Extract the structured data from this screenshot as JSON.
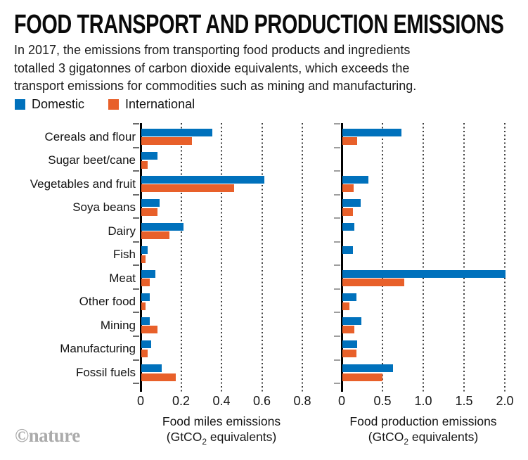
{
  "title": "FOOD TRANSPORT AND PRODUCTION EMISSIONS",
  "subtitle_lines": [
    "In 2017, the emissions from transporting food products and ingredients",
    "totalled 3 gigatonnes of carbon dioxide equivalents, which exceeds the",
    "transport emissions for commodities such as mining and manufacturing."
  ],
  "legend": {
    "items": [
      {
        "label": "Domestic",
        "color": "#0071BC"
      },
      {
        "label": "International",
        "color": "#E8602A"
      }
    ]
  },
  "watermark": "©nature",
  "chart_data": [
    {
      "type": "bar",
      "orientation": "horizontal",
      "title": "Food miles emissions",
      "xlabel": "Food miles emissions",
      "xunit": {
        "pre": "(GtCO",
        "sub": "2",
        "post": " equivalents)"
      },
      "xlim": [
        0,
        0.8
      ],
      "tick_values": [
        0,
        0.2,
        0.4,
        0.6,
        0.8
      ],
      "tick_labels": [
        "0",
        "0.2",
        "0.4",
        "0.6",
        "0.8"
      ],
      "grid": "dotted-vertical",
      "categories": [
        "Cereals and flour",
        "Sugar beet/cane",
        "Vegetables and fruit",
        "Soya beans",
        "Dairy",
        "Fish",
        "Meat",
        "Other food",
        "Mining",
        "Manufacturing",
        "Fossil fuels"
      ],
      "series": [
        {
          "name": "Domestic",
          "color": "#0071BC",
          "values": [
            0.35,
            0.08,
            0.61,
            0.09,
            0.21,
            0.03,
            0.07,
            0.04,
            0.04,
            0.05,
            0.1
          ]
        },
        {
          "name": "International",
          "color": "#E8602A",
          "values": [
            0.25,
            0.03,
            0.46,
            0.08,
            0.14,
            0.02,
            0.04,
            0.02,
            0.08,
            0.03,
            0.17
          ]
        }
      ]
    },
    {
      "type": "bar",
      "orientation": "horizontal",
      "title": "Food production emissions",
      "xlabel": "Food production emissions",
      "xunit": {
        "pre": "(GtCO",
        "sub": "2",
        "post": " equivalents)"
      },
      "xlim": [
        0,
        2.0
      ],
      "tick_values": [
        0,
        0.5,
        1.0,
        1.5,
        2.0
      ],
      "tick_labels": [
        "0",
        "0.5",
        "1.0",
        "1.5",
        "2.0"
      ],
      "grid": "dotted-vertical",
      "categories": [
        "Cereals and flour",
        "Sugar beet/cane",
        "Vegetables and fruit",
        "Soya beans",
        "Dairy",
        "Fish",
        "Meat",
        "Other food",
        "Mining",
        "Manufacturing",
        "Fossil fuels"
      ],
      "series": [
        {
          "name": "Domestic",
          "color": "#0071BC",
          "values": [
            0.72,
            0,
            0.32,
            0.22,
            0.15,
            0.13,
            2.0,
            0.17,
            0.23,
            0.18,
            0.62
          ]
        },
        {
          "name": "International",
          "color": "#E8602A",
          "values": [
            0.18,
            0,
            0.14,
            0.13,
            0,
            0,
            0.76,
            0.09,
            0.15,
            0.17,
            0.49
          ]
        }
      ]
    }
  ]
}
